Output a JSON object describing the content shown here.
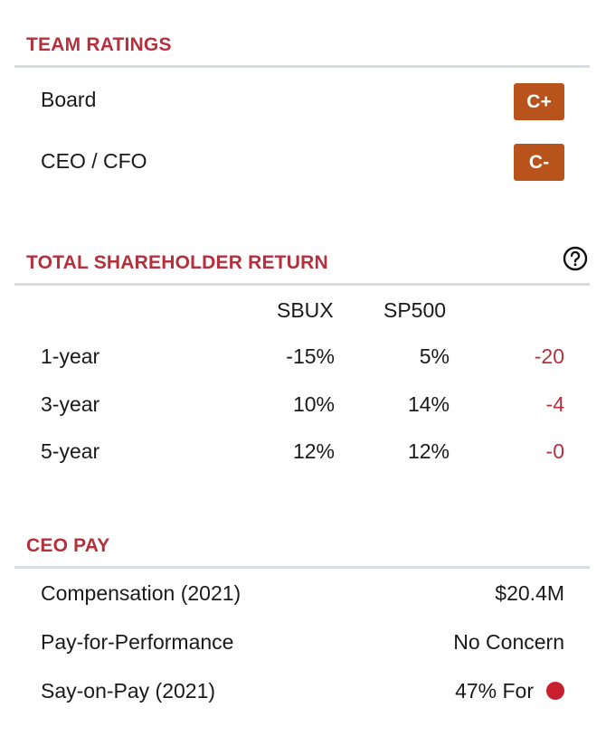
{
  "team_ratings": {
    "title": "TEAM RATINGS",
    "rows": [
      {
        "label": "Board",
        "grade": "C+"
      },
      {
        "label": "CEO / CFO",
        "grade": "C-"
      }
    ]
  },
  "tsr": {
    "title": "TOTAL SHAREHOLDER RETURN",
    "help_icon": "question-circle-icon",
    "col_sbux": "SBUX",
    "col_sp500": "SP500",
    "rows": [
      {
        "label": "1-year",
        "sbux": "-15%",
        "sp500": "5%",
        "diff": "-20"
      },
      {
        "label": "3-year",
        "sbux": "10%",
        "sp500": "14%",
        "diff": "-4"
      },
      {
        "label": "5-year",
        "sbux": "12%",
        "sp500": "12%",
        "diff": "-0"
      }
    ],
    "diff_color": "#b5303c"
  },
  "ceo_pay": {
    "title": "CEO PAY",
    "rows": [
      {
        "label": "Compensation (2021)",
        "value": "$20.4M"
      },
      {
        "label": "Pay-for-Performance",
        "value": "No Concern"
      },
      {
        "label": "Say-on-Pay (2021)",
        "value": "47% For"
      }
    ],
    "status_color": "#c8202f"
  },
  "grade_color": "#b9531c",
  "accent": "#b5303c"
}
